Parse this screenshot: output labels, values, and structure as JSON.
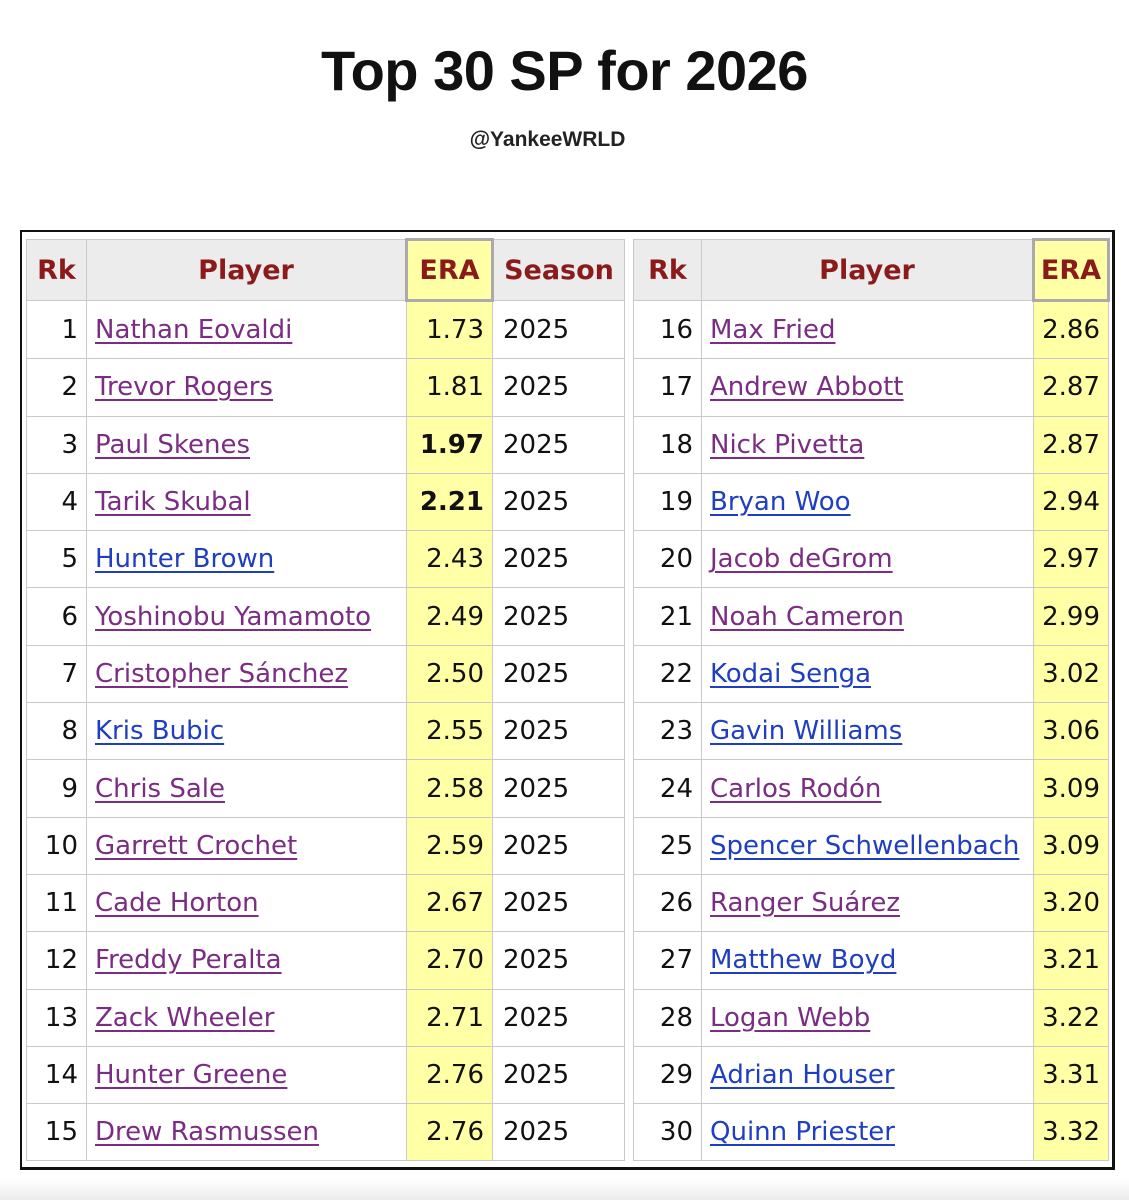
{
  "header": {
    "title": "Top 30 SP for 2026",
    "handle": "@YankeeWRLD"
  },
  "columns": {
    "rank": "Rk",
    "player": "Player",
    "era": "ERA",
    "season": "Season"
  },
  "left_rows": [
    {
      "rk": "1",
      "player": "Nathan Eovaldi",
      "era": "1.73",
      "season": "2025",
      "link": "visited",
      "bold": false
    },
    {
      "rk": "2",
      "player": "Trevor Rogers",
      "era": "1.81",
      "season": "2025",
      "link": "visited",
      "bold": false
    },
    {
      "rk": "3",
      "player": "Paul Skenes",
      "era": "1.97",
      "season": "2025",
      "link": "visited",
      "bold": true
    },
    {
      "rk": "4",
      "player": "Tarik Skubal",
      "era": "2.21",
      "season": "2025",
      "link": "visited",
      "bold": true
    },
    {
      "rk": "5",
      "player": "Hunter Brown",
      "era": "2.43",
      "season": "2025",
      "link": "unvisited",
      "bold": false
    },
    {
      "rk": "6",
      "player": "Yoshinobu Yamamoto",
      "era": "2.49",
      "season": "2025",
      "link": "visited",
      "bold": false
    },
    {
      "rk": "7",
      "player": "Cristopher Sánchez",
      "era": "2.50",
      "season": "2025",
      "link": "visited",
      "bold": false
    },
    {
      "rk": "8",
      "player": "Kris Bubic",
      "era": "2.55",
      "season": "2025",
      "link": "unvisited",
      "bold": false
    },
    {
      "rk": "9",
      "player": "Chris Sale",
      "era": "2.58",
      "season": "2025",
      "link": "visited",
      "bold": false
    },
    {
      "rk": "10",
      "player": "Garrett Crochet",
      "era": "2.59",
      "season": "2025",
      "link": "visited",
      "bold": false
    },
    {
      "rk": "11",
      "player": "Cade Horton",
      "era": "2.67",
      "season": "2025",
      "link": "visited",
      "bold": false
    },
    {
      "rk": "12",
      "player": "Freddy Peralta",
      "era": "2.70",
      "season": "2025",
      "link": "visited",
      "bold": false
    },
    {
      "rk": "13",
      "player": "Zack Wheeler",
      "era": "2.71",
      "season": "2025",
      "link": "visited",
      "bold": false
    },
    {
      "rk": "14",
      "player": "Hunter Greene",
      "era": "2.76",
      "season": "2025",
      "link": "visited",
      "bold": false
    },
    {
      "rk": "15",
      "player": "Drew Rasmussen",
      "era": "2.76",
      "season": "2025",
      "link": "visited",
      "bold": false
    }
  ],
  "right_rows": [
    {
      "rk": "16",
      "player": "Max Fried",
      "era": "2.86",
      "link": "visited"
    },
    {
      "rk": "17",
      "player": "Andrew Abbott",
      "era": "2.87",
      "link": "visited"
    },
    {
      "rk": "18",
      "player": "Nick Pivetta",
      "era": "2.87",
      "link": "visited"
    },
    {
      "rk": "19",
      "player": "Bryan Woo",
      "era": "2.94",
      "link": "unvisited"
    },
    {
      "rk": "20",
      "player": "Jacob deGrom",
      "era": "2.97",
      "link": "visited"
    },
    {
      "rk": "21",
      "player": "Noah Cameron",
      "era": "2.99",
      "link": "visited"
    },
    {
      "rk": "22",
      "player": "Kodai Senga",
      "era": "3.02",
      "link": "unvisited"
    },
    {
      "rk": "23",
      "player": "Gavin Williams",
      "era": "3.06",
      "link": "unvisited"
    },
    {
      "rk": "24",
      "player": "Carlos Rodón",
      "era": "3.09",
      "link": "visited"
    },
    {
      "rk": "25",
      "player": "Spencer Schwellenbach",
      "era": "3.09",
      "link": "unvisited"
    },
    {
      "rk": "26",
      "player": "Ranger Suárez",
      "era": "3.20",
      "link": "visited"
    },
    {
      "rk": "27",
      "player": "Matthew Boyd",
      "era": "3.21",
      "link": "unvisited"
    },
    {
      "rk": "28",
      "player": "Logan Webb",
      "era": "3.22",
      "link": "visited"
    },
    {
      "rk": "29",
      "player": "Adrian Houser",
      "era": "3.31",
      "link": "unvisited"
    },
    {
      "rk": "30",
      "player": "Quinn Priester",
      "era": "3.32",
      "link": "unvisited"
    }
  ],
  "colors": {
    "header_text": "#8b1a1a",
    "header_bg": "#ececec",
    "era_highlight": "#ffffa6",
    "visited_link": "#7b2d83",
    "unvisited_link": "#1f3ec1"
  }
}
